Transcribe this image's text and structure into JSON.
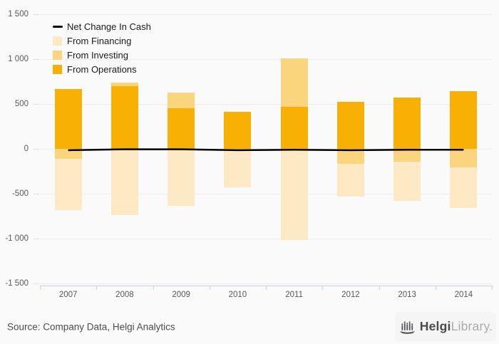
{
  "chart_data": {
    "type": "bar",
    "subtype": "stacked-bars-with-line",
    "title": "",
    "categories": [
      "2007",
      "2008",
      "2009",
      "2010",
      "2011",
      "2012",
      "2013",
      "2014"
    ],
    "series": [
      {
        "name": "From Operations",
        "key": "operations",
        "color": "#F8B005",
        "values": [
          665,
          700,
          450,
          415,
          465,
          520,
          570,
          645
        ]
      },
      {
        "name": "From Investing",
        "key": "investing",
        "color": "#FBD47E",
        "values": [
          -115,
          35,
          180,
          -15,
          540,
          -170,
          -140,
          -205
        ]
      },
      {
        "name": "From Financing",
        "key": "financing",
        "color": "#FDEAC5",
        "values": [
          -565,
          -740,
          -635,
          -415,
          -1015,
          -365,
          -440,
          -450
        ]
      }
    ],
    "line_series": {
      "name": "Net Change In Cash",
      "color": "#000000",
      "values": [
        -15,
        -5,
        -5,
        -15,
        -10,
        -15,
        -10,
        -10
      ]
    },
    "stacked": true,
    "xlabel": "",
    "ylabel": "",
    "ylim": [
      -1500,
      1500
    ],
    "y_ticks": [
      {
        "value": 1500,
        "label": "1 500"
      },
      {
        "value": 1000,
        "label": "1 000"
      },
      {
        "value": 500,
        "label": "500"
      },
      {
        "value": 0,
        "label": "0"
      },
      {
        "value": -500,
        "label": "-500"
      },
      {
        "value": -1000,
        "label": "-1 000"
      },
      {
        "value": -1500,
        "label": "-1 500"
      }
    ],
    "grid": true,
    "legend_position": "top-left",
    "legend": [
      {
        "label": "Net Change In Cash",
        "swatch": "line",
        "color": "#000000"
      },
      {
        "label": "From Financing",
        "swatch": "box",
        "color": "#FDEAC5"
      },
      {
        "label": "From Investing",
        "swatch": "box",
        "color": "#FBD47E"
      },
      {
        "label": "From Operations",
        "swatch": "box",
        "color": "#F8B005"
      }
    ]
  },
  "colors": {
    "background": "#FAFAFA",
    "gridline": "#ECECEC",
    "axis": "#C9D0DC",
    "tick_label": "#595959",
    "legend_text": "#1A1A1A"
  },
  "footer": {
    "source": "Source: Company Data, Helgi Analytics",
    "logo": {
      "brand_bold": "Helgi",
      "brand_light": "Library."
    }
  }
}
